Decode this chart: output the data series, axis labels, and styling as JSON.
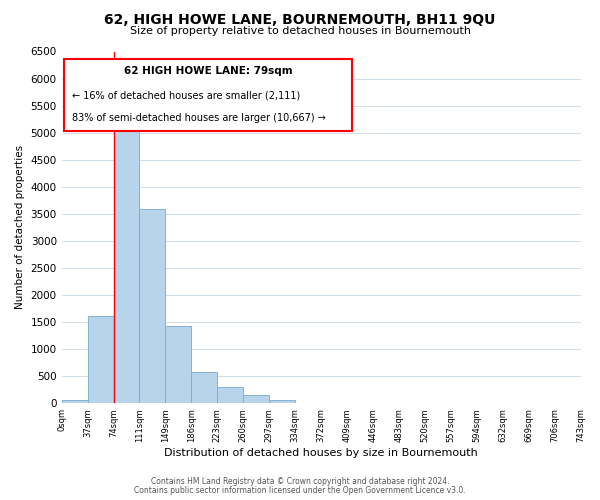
{
  "title": "62, HIGH HOWE LANE, BOURNEMOUTH, BH11 9QU",
  "subtitle": "Size of property relative to detached houses in Bournemouth",
  "xlabel": "Distribution of detached houses by size in Bournemouth",
  "ylabel": "Number of detached properties",
  "bar_color": "#b8d4ea",
  "bar_edge_color": "#7aaac8",
  "bin_labels": [
    "0sqm",
    "37sqm",
    "74sqm",
    "111sqm",
    "149sqm",
    "186sqm",
    "223sqm",
    "260sqm",
    "297sqm",
    "334sqm",
    "372sqm",
    "409sqm",
    "446sqm",
    "483sqm",
    "520sqm",
    "557sqm",
    "594sqm",
    "632sqm",
    "669sqm",
    "706sqm",
    "743sqm"
  ],
  "bar_values": [
    60,
    1620,
    5080,
    3580,
    1420,
    580,
    295,
    145,
    60,
    0,
    0,
    0,
    0,
    0,
    0,
    0,
    0,
    0,
    0,
    0
  ],
  "ylim": [
    0,
    6500
  ],
  "yticks": [
    0,
    500,
    1000,
    1500,
    2000,
    2500,
    3000,
    3500,
    4000,
    4500,
    5000,
    5500,
    6000,
    6500
  ],
  "annotation_title": "62 HIGH HOWE LANE: 79sqm",
  "annotation_line1": "← 16% of detached houses are smaller (2,111)",
  "annotation_line2": "83% of semi-detached houses are larger (10,667) →",
  "vline_bin_index": 2,
  "footer1": "Contains HM Land Registry data © Crown copyright and database right 2024.",
  "footer2": "Contains public sector information licensed under the Open Government Licence v3.0.",
  "background_color": "#ffffff",
  "grid_color": "#c8d8e8"
}
